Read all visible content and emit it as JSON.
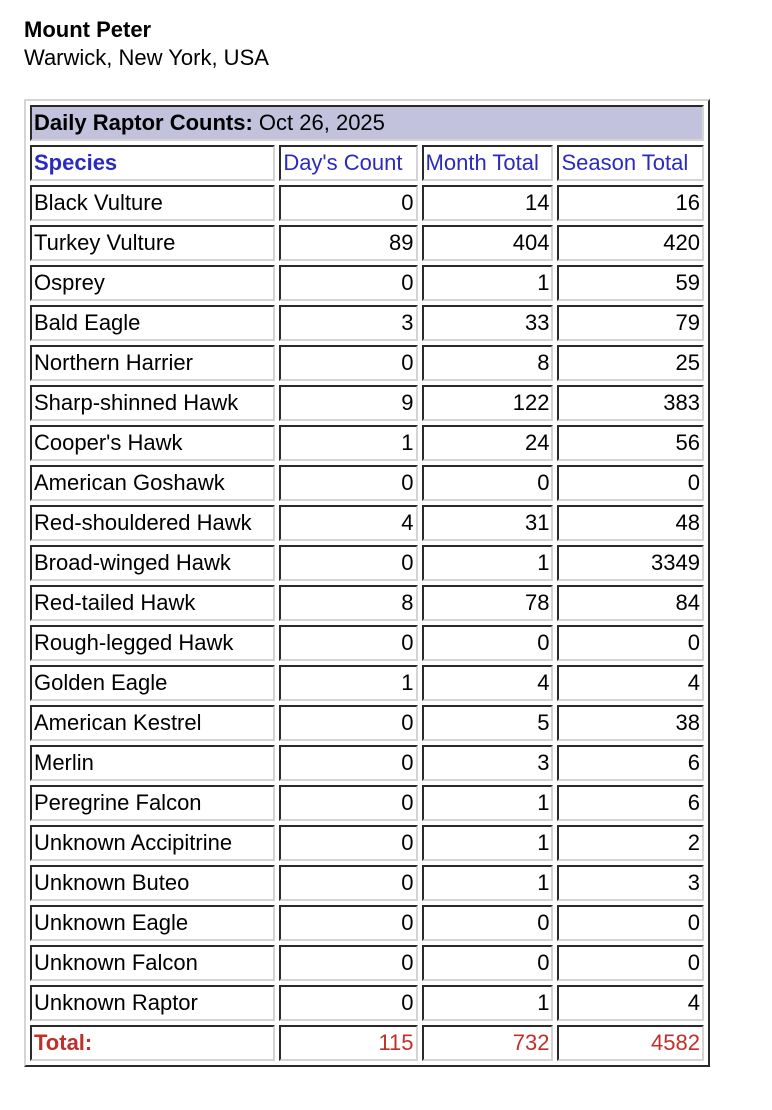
{
  "site": {
    "name": "Mount Peter",
    "location": "Warwick, New York, USA"
  },
  "table": {
    "title_label": "Daily Raptor Counts:",
    "date": "Oct 26, 2025",
    "columns": [
      "Species",
      "Day's Count",
      "Month Total",
      "Season Total"
    ],
    "rows": [
      [
        "Black Vulture",
        "0",
        "14",
        "16"
      ],
      [
        "Turkey Vulture",
        "89",
        "404",
        "420"
      ],
      [
        "Osprey",
        "0",
        "1",
        "59"
      ],
      [
        "Bald Eagle",
        "3",
        "33",
        "79"
      ],
      [
        "Northern Harrier",
        "0",
        "8",
        "25"
      ],
      [
        "Sharp-shinned Hawk",
        "9",
        "122",
        "383"
      ],
      [
        "Cooper's Hawk",
        "1",
        "24",
        "56"
      ],
      [
        "American Goshawk",
        "0",
        "0",
        "0"
      ],
      [
        "Red-shouldered Hawk",
        "4",
        "31",
        "48"
      ],
      [
        "Broad-winged Hawk",
        "0",
        "1",
        "3349"
      ],
      [
        "Red-tailed Hawk",
        "8",
        "78",
        "84"
      ],
      [
        "Rough-legged Hawk",
        "0",
        "0",
        "0"
      ],
      [
        "Golden Eagle",
        "1",
        "4",
        "4"
      ],
      [
        "American Kestrel",
        "0",
        "5",
        "38"
      ],
      [
        "Merlin",
        "0",
        "3",
        "6"
      ],
      [
        "Peregrine Falcon",
        "0",
        "1",
        "6"
      ],
      [
        "Unknown Accipitrine",
        "0",
        "1",
        "2"
      ],
      [
        "Unknown Buteo",
        "0",
        "1",
        "3"
      ],
      [
        "Unknown Eagle",
        "0",
        "0",
        "0"
      ],
      [
        "Unknown Falcon",
        "0",
        "0",
        "0"
      ],
      [
        "Unknown Raptor",
        "0",
        "1",
        "4"
      ]
    ],
    "total": [
      "Total:",
      "115",
      "732",
      "4582"
    ]
  },
  "colors": {
    "title_bg": "#c2c2dc",
    "header_text": "#2a2ac0",
    "total_text": "#c0302a"
  }
}
